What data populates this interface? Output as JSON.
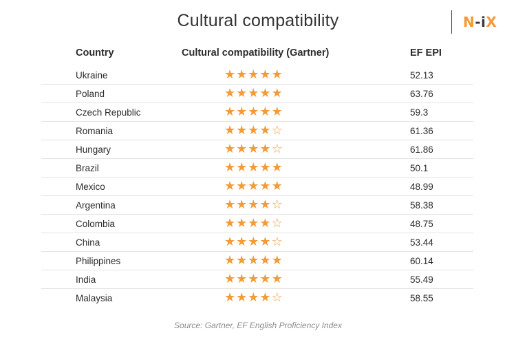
{
  "title": "Cultural compatibility",
  "brand": {
    "logo_part1": "N",
    "logo_part2": "-i",
    "logo_part3": "X"
  },
  "table": {
    "headers": {
      "country": "Country",
      "compatibility": "Cultural compatibility (Gartner)",
      "epi": "EF EPI"
    },
    "max_stars": 5,
    "rows": [
      {
        "country": "Ukraine",
        "stars": 5,
        "epi": "52.13"
      },
      {
        "country": "Poland",
        "stars": 5,
        "epi": "63.76"
      },
      {
        "country": "Czech Republic",
        "stars": 5,
        "epi": "59.3"
      },
      {
        "country": "Romania",
        "stars": 4,
        "epi": "61.36"
      },
      {
        "country": "Hungary",
        "stars": 4,
        "epi": "61.86"
      },
      {
        "country": "Brazil",
        "stars": 5,
        "epi": "50.1"
      },
      {
        "country": "Mexico",
        "stars": 5,
        "epi": "48.99"
      },
      {
        "country": "Argentina",
        "stars": 4,
        "epi": "58.38"
      },
      {
        "country": "Colombia",
        "stars": 4,
        "epi": "48.75"
      },
      {
        "country": "China",
        "stars": 4,
        "epi": "53.44"
      },
      {
        "country": "Philippines",
        "stars": 5,
        "epi": "60.14"
      },
      {
        "country": "India",
        "stars": 5,
        "epi": "55.49"
      },
      {
        "country": "Malaysia",
        "stars": 4,
        "epi": "58.55"
      }
    ]
  },
  "colors": {
    "star": "#f59a36",
    "brand_accent": "#f59a36",
    "text": "#2b2b2b",
    "source_text": "#8c8c8c"
  },
  "source": "Source: Gartner, EF English Proficiency Index"
}
